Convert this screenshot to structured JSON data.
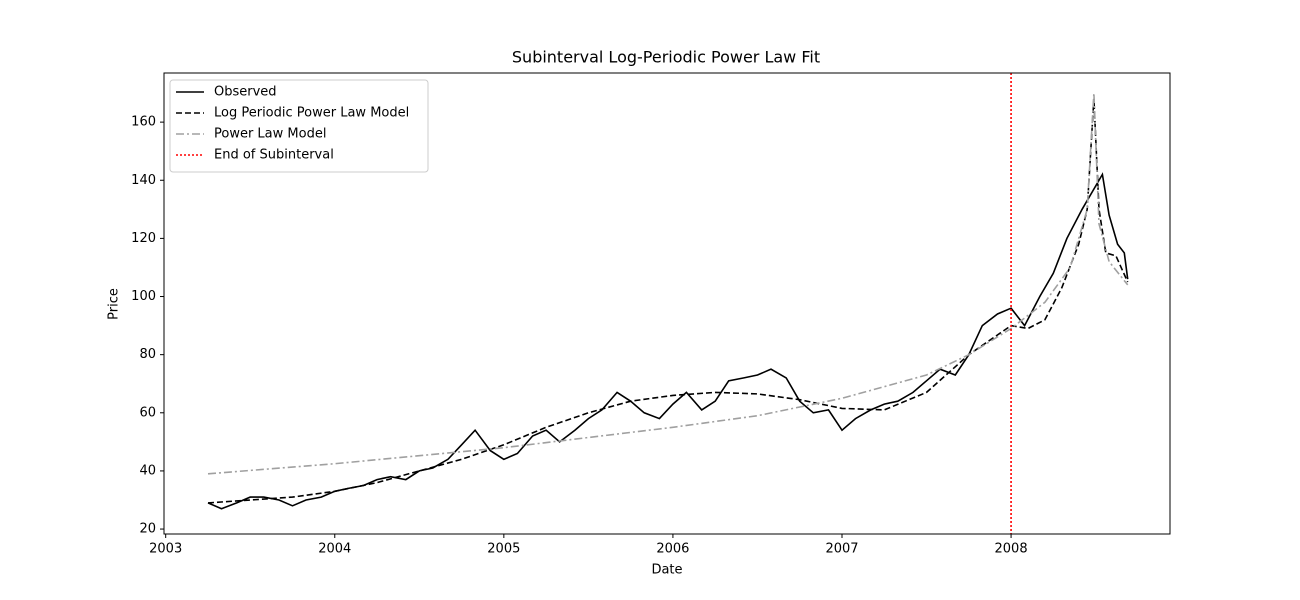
{
  "chart_data": {
    "type": "line",
    "title": "Subinterval Log-Periodic Power Law Fit",
    "xlabel": "Date",
    "ylabel": "Price",
    "xlim": [
      2002.99,
      2008.94
    ],
    "xticks": [
      2003,
      2004,
      2005,
      2006,
      2007,
      2008
    ],
    "ylim": [
      18.3,
      176.9
    ],
    "yticks": [
      20,
      40,
      60,
      80,
      100,
      120,
      140,
      160
    ],
    "legend": "upper left",
    "grid": false,
    "series": [
      {
        "name": "Observed",
        "color": "#000000",
        "linestyle": "solid",
        "x": [
          2003.25,
          2003.33,
          2003.42,
          2003.5,
          2003.58,
          2003.67,
          2003.75,
          2003.83,
          2003.92,
          2004.0,
          2004.08,
          2004.17,
          2004.25,
          2004.33,
          2004.42,
          2004.5,
          2004.58,
          2004.67,
          2004.75,
          2004.83,
          2004.92,
          2005.0,
          2005.08,
          2005.17,
          2005.25,
          2005.33,
          2005.42,
          2005.5,
          2005.58,
          2005.67,
          2005.75,
          2005.83,
          2005.92,
          2006.0,
          2006.08,
          2006.17,
          2006.25,
          2006.33,
          2006.42,
          2006.5,
          2006.58,
          2006.67,
          2006.75,
          2006.83,
          2006.92,
          2007.0,
          2007.08,
          2007.17,
          2007.25,
          2007.33,
          2007.42,
          2007.5,
          2007.58,
          2007.67,
          2007.75,
          2007.83,
          2007.92,
          2008.0,
          2008.08,
          2008.17,
          2008.25,
          2008.33,
          2008.42,
          2008.5,
          2008.54,
          2008.58,
          2008.63,
          2008.67,
          2008.69
        ],
        "values": [
          29,
          27,
          29,
          31,
          31,
          30,
          28,
          30,
          31,
          33,
          34,
          35,
          37,
          38,
          37,
          40,
          41,
          44,
          49,
          54,
          47,
          44,
          46,
          52,
          54,
          50,
          54,
          58,
          61,
          67,
          64,
          60,
          58,
          63,
          67,
          61,
          64,
          71,
          72,
          73,
          75,
          72,
          64,
          60,
          61,
          54,
          58,
          61,
          63,
          64,
          67,
          71,
          75,
          73,
          80,
          90,
          94,
          96,
          90,
          100,
          108,
          120,
          130,
          138,
          142,
          128,
          118,
          115,
          106
        ]
      },
      {
        "name": "Log Periodic Power Law Model",
        "color": "#000000",
        "linestyle": "dashed",
        "x": [
          2003.25,
          2003.5,
          2003.75,
          2004.0,
          2004.25,
          2004.5,
          2004.75,
          2005.0,
          2005.25,
          2005.5,
          2005.75,
          2006.0,
          2006.25,
          2006.5,
          2006.75,
          2007.0,
          2007.25,
          2007.5,
          2007.75,
          2008.0,
          2008.1,
          2008.2,
          2008.3,
          2008.4,
          2008.45,
          2008.49,
          2008.52,
          2008.56,
          2008.62,
          2008.69
        ],
        "values": [
          29,
          30,
          31,
          33,
          36,
          40,
          44,
          49,
          55,
          60,
          64,
          66,
          67,
          66.5,
          64.5,
          61.5,
          61,
          67,
          80,
          90,
          89,
          92,
          103,
          118,
          130,
          168,
          130,
          115,
          114,
          105
        ]
      },
      {
        "name": "Power Law Model",
        "color": "#a0a0a0",
        "linestyle": "dashdot",
        "x": [
          2003.25,
          2004.0,
          2005.0,
          2006.0,
          2006.5,
          2007.0,
          2007.5,
          2007.75,
          2008.0,
          2008.2,
          2008.35,
          2008.45,
          2008.49,
          2008.52,
          2008.58,
          2008.69
        ],
        "values": [
          39,
          42.5,
          48,
          55,
          59,
          65,
          73,
          80,
          89,
          98,
          110,
          130,
          170,
          125,
          112,
          104
        ]
      }
    ],
    "vlines": [
      {
        "name": "End of Subinterval",
        "color": "#ff0000",
        "linestyle": "dotted",
        "x": 2008
      }
    ]
  }
}
